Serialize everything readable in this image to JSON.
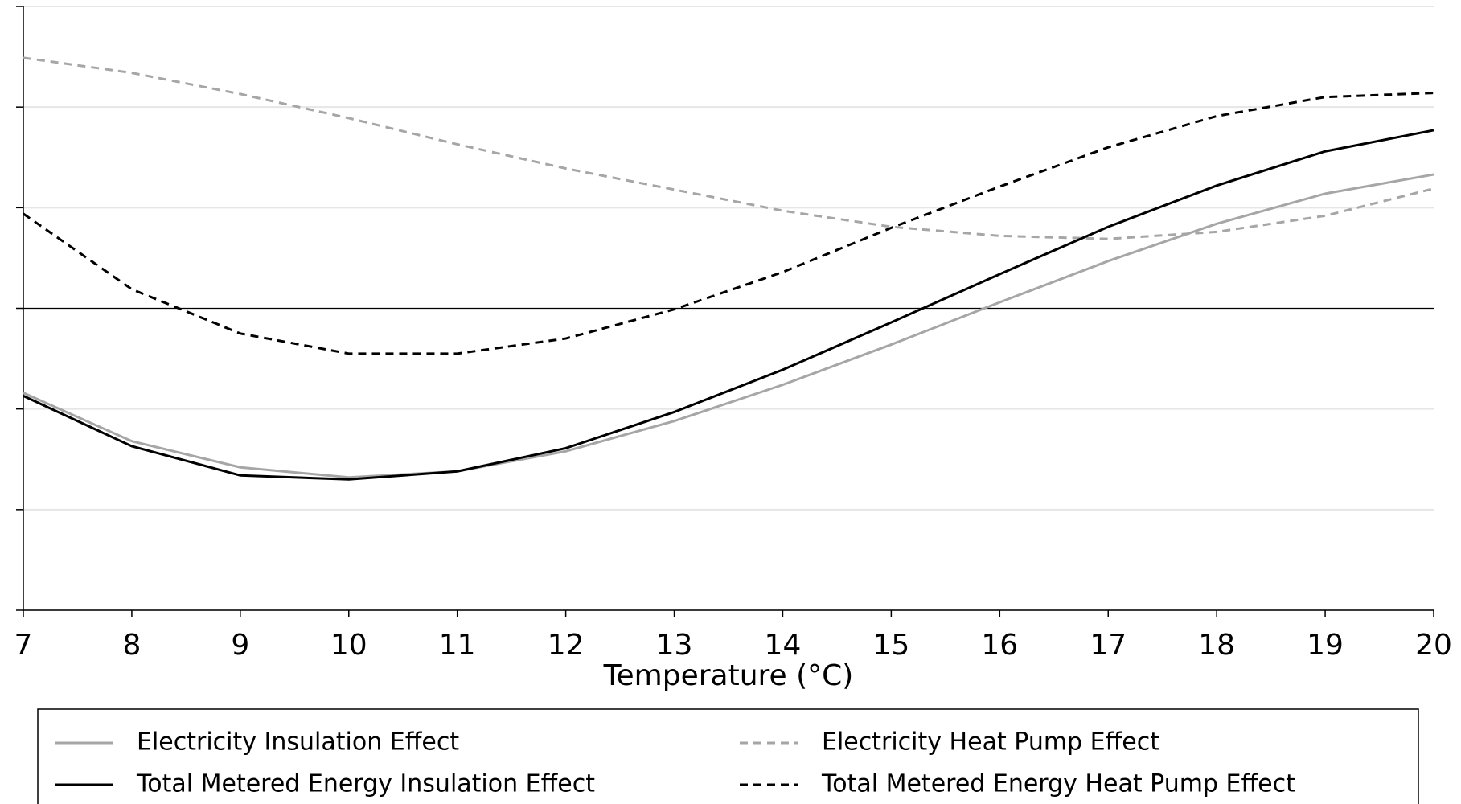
{
  "chart_data": {
    "type": "line",
    "x_label": "Temperature (°C)",
    "x": [
      7,
      8,
      9,
      10,
      11,
      12,
      13,
      14,
      15,
      16,
      17,
      18,
      19,
      20
    ],
    "xlim": [
      7,
      20
    ],
    "xticks": [
      7,
      8,
      9,
      10,
      11,
      12,
      13,
      14,
      15,
      16,
      17,
      18,
      19,
      20
    ],
    "ylim": [
      -3,
      3
    ],
    "yticks": [
      -3,
      -2,
      -1,
      0,
      1,
      2,
      3
    ],
    "grid": true,
    "legend": "bottom",
    "series": [
      {
        "name": "Electricity Insulation Effect",
        "color": "#a6a6a6",
        "dash": false,
        "values": [
          -0.84,
          -1.32,
          -1.58,
          -1.68,
          -1.62,
          -1.42,
          -1.12,
          -0.76,
          -0.36,
          0.06,
          0.47,
          0.84,
          1.14,
          1.33
        ]
      },
      {
        "name": "Electricity Heat Pump Effect",
        "color": "#a6a6a6",
        "dash": true,
        "values": [
          2.49,
          2.34,
          2.13,
          1.89,
          1.63,
          1.39,
          1.18,
          0.97,
          0.81,
          0.72,
          0.69,
          0.76,
          0.92,
          1.19
        ]
      },
      {
        "name": "Total Metered Energy Insulation Effect",
        "color": "#000000",
        "dash": false,
        "values": [
          -0.87,
          -1.37,
          -1.66,
          -1.7,
          -1.62,
          -1.39,
          -1.03,
          -0.61,
          -0.14,
          0.34,
          0.81,
          1.22,
          1.56,
          1.77
        ]
      },
      {
        "name": "Total Metered Energy Heat Pump Effect",
        "color": "#000000",
        "dash": true,
        "values": [
          0.94,
          0.19,
          -0.25,
          -0.45,
          -0.45,
          -0.3,
          -0.01,
          0.36,
          0.8,
          1.21,
          1.6,
          1.91,
          2.1,
          2.14
        ]
      }
    ]
  }
}
